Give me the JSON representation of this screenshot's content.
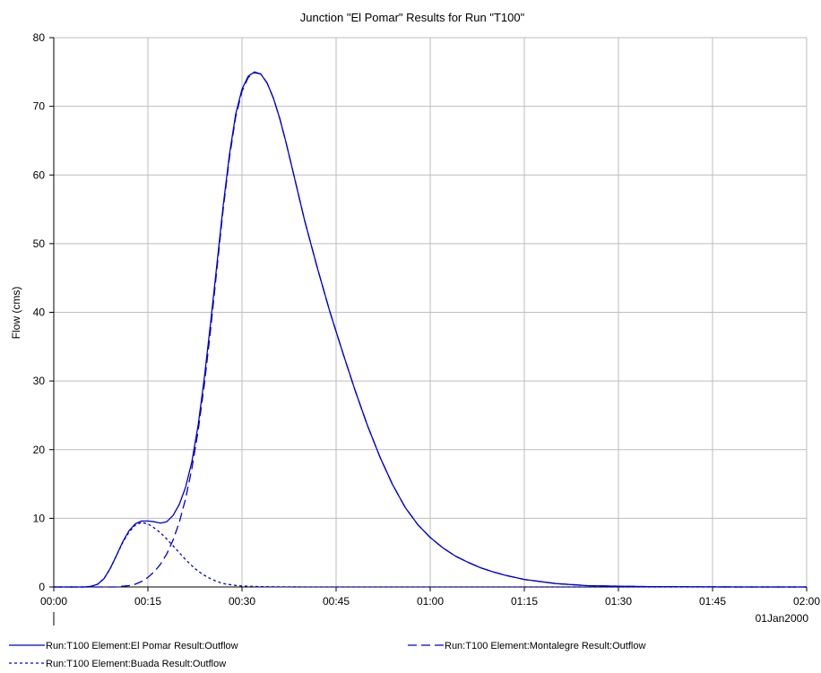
{
  "chart_data": {
    "type": "line",
    "title": "Junction \"El Pomar\" Results for Run \"T100\"",
    "ylabel": "Flow (cms)",
    "xlabel": "",
    "date_label": "01Jan2000",
    "x_unit": "minutes",
    "xlim": [
      0,
      120
    ],
    "ylim": [
      0,
      80
    ],
    "grid": true,
    "legend_position": "bottom",
    "x_ticks": [
      {
        "value": 0,
        "label": "00:00"
      },
      {
        "value": 15,
        "label": "00:15"
      },
      {
        "value": 30,
        "label": "00:30"
      },
      {
        "value": 45,
        "label": "00:45"
      },
      {
        "value": 60,
        "label": "01:00"
      },
      {
        "value": 75,
        "label": "01:15"
      },
      {
        "value": 90,
        "label": "01:30"
      },
      {
        "value": 105,
        "label": "01:45"
      },
      {
        "value": 120,
        "label": "02:00"
      }
    ],
    "y_ticks": [
      {
        "value": 0,
        "label": "0"
      },
      {
        "value": 10,
        "label": "10"
      },
      {
        "value": 20,
        "label": "20"
      },
      {
        "value": 30,
        "label": "30"
      },
      {
        "value": 40,
        "label": "40"
      },
      {
        "value": 50,
        "label": "50"
      },
      {
        "value": 60,
        "label": "60"
      },
      {
        "value": 70,
        "label": "70"
      },
      {
        "value": 80,
        "label": "80"
      }
    ],
    "series": [
      {
        "name": "Run:T100 Element:El Pomar Result:Outflow",
        "color": "#0000cc",
        "style": "solid",
        "x": [
          0,
          5,
          6,
          7,
          8,
          9,
          10,
          11,
          12,
          13,
          14,
          15,
          16,
          17,
          18,
          19,
          20,
          21,
          22,
          23,
          24,
          25,
          26,
          27,
          28,
          29,
          30,
          31,
          32,
          33,
          34,
          35,
          36,
          37,
          38,
          40,
          42,
          44,
          46,
          48,
          50,
          52,
          54,
          56,
          58,
          60,
          62,
          64,
          66,
          68,
          70,
          72,
          75,
          80,
          85,
          90,
          95,
          100,
          110,
          120
        ],
        "y": [
          0,
          0,
          0.1,
          0.4,
          1.2,
          2.7,
          4.6,
          6.6,
          8.2,
          9.2,
          9.6,
          9.6,
          9.5,
          9.3,
          9.5,
          10.4,
          12.0,
          14.5,
          18.2,
          23.5,
          30.5,
          38.5,
          47.0,
          55.5,
          63.0,
          68.9,
          72.5,
          74.4,
          75.0,
          74.7,
          73.4,
          71.2,
          68.3,
          64.8,
          61.0,
          53.3,
          46.5,
          40.1,
          34.3,
          28.7,
          23.5,
          18.9,
          14.9,
          11.6,
          9.1,
          7.2,
          5.7,
          4.5,
          3.6,
          2.8,
          2.2,
          1.7,
          1.1,
          0.5,
          0.2,
          0.1,
          0.05,
          0.02,
          0,
          0
        ]
      },
      {
        "name": "Run:T100 Element:Montalegre Result:Outflow",
        "color": "#0000cc",
        "style": "dashed",
        "x": [
          0,
          10,
          11,
          12,
          13,
          14,
          15,
          16,
          17,
          18,
          19,
          20,
          21,
          22,
          23,
          24,
          25,
          26,
          27,
          28,
          29,
          30,
          31,
          32,
          33,
          34,
          35,
          36,
          37,
          38,
          40,
          42,
          44,
          46,
          48,
          50,
          52,
          54,
          56,
          58,
          60,
          62,
          64,
          66,
          68,
          70,
          72,
          75,
          80,
          85,
          90,
          95,
          100,
          110,
          120
        ],
        "y": [
          0,
          0,
          0.1,
          0.2,
          0.4,
          0.8,
          1.4,
          2.2,
          3.3,
          4.8,
          6.8,
          9.4,
          12.8,
          17.2,
          22.7,
          29.5,
          37.5,
          46.3,
          55.0,
          62.5,
          68.5,
          72.2,
          74.2,
          74.9,
          74.7,
          73.4,
          71.2,
          68.3,
          64.8,
          61.0,
          53.3,
          46.5,
          40.1,
          34.3,
          28.7,
          23.5,
          18.9,
          14.9,
          11.6,
          9.1,
          7.2,
          5.7,
          4.5,
          3.6,
          2.8,
          2.2,
          1.7,
          1.1,
          0.5,
          0.2,
          0.1,
          0.05,
          0.02,
          0,
          0
        ]
      },
      {
        "name": "Run:T100 Element:Buada Result:Outflow",
        "color": "#0000cc",
        "style": "dotted",
        "x": [
          0,
          5,
          6,
          7,
          8,
          9,
          10,
          11,
          12,
          13,
          14,
          15,
          16,
          17,
          18,
          19,
          20,
          21,
          22,
          23,
          24,
          25,
          26,
          27,
          28,
          29,
          30,
          32,
          35,
          40,
          50,
          60,
          120
        ],
        "y": [
          0,
          0,
          0.1,
          0.4,
          1.2,
          2.7,
          4.6,
          6.5,
          8.0,
          9.0,
          9.4,
          9.2,
          8.6,
          7.9,
          7.0,
          6.0,
          5.0,
          4.0,
          3.1,
          2.3,
          1.7,
          1.2,
          0.8,
          0.5,
          0.35,
          0.22,
          0.14,
          0.06,
          0.02,
          0,
          0,
          0,
          0
        ]
      }
    ]
  }
}
